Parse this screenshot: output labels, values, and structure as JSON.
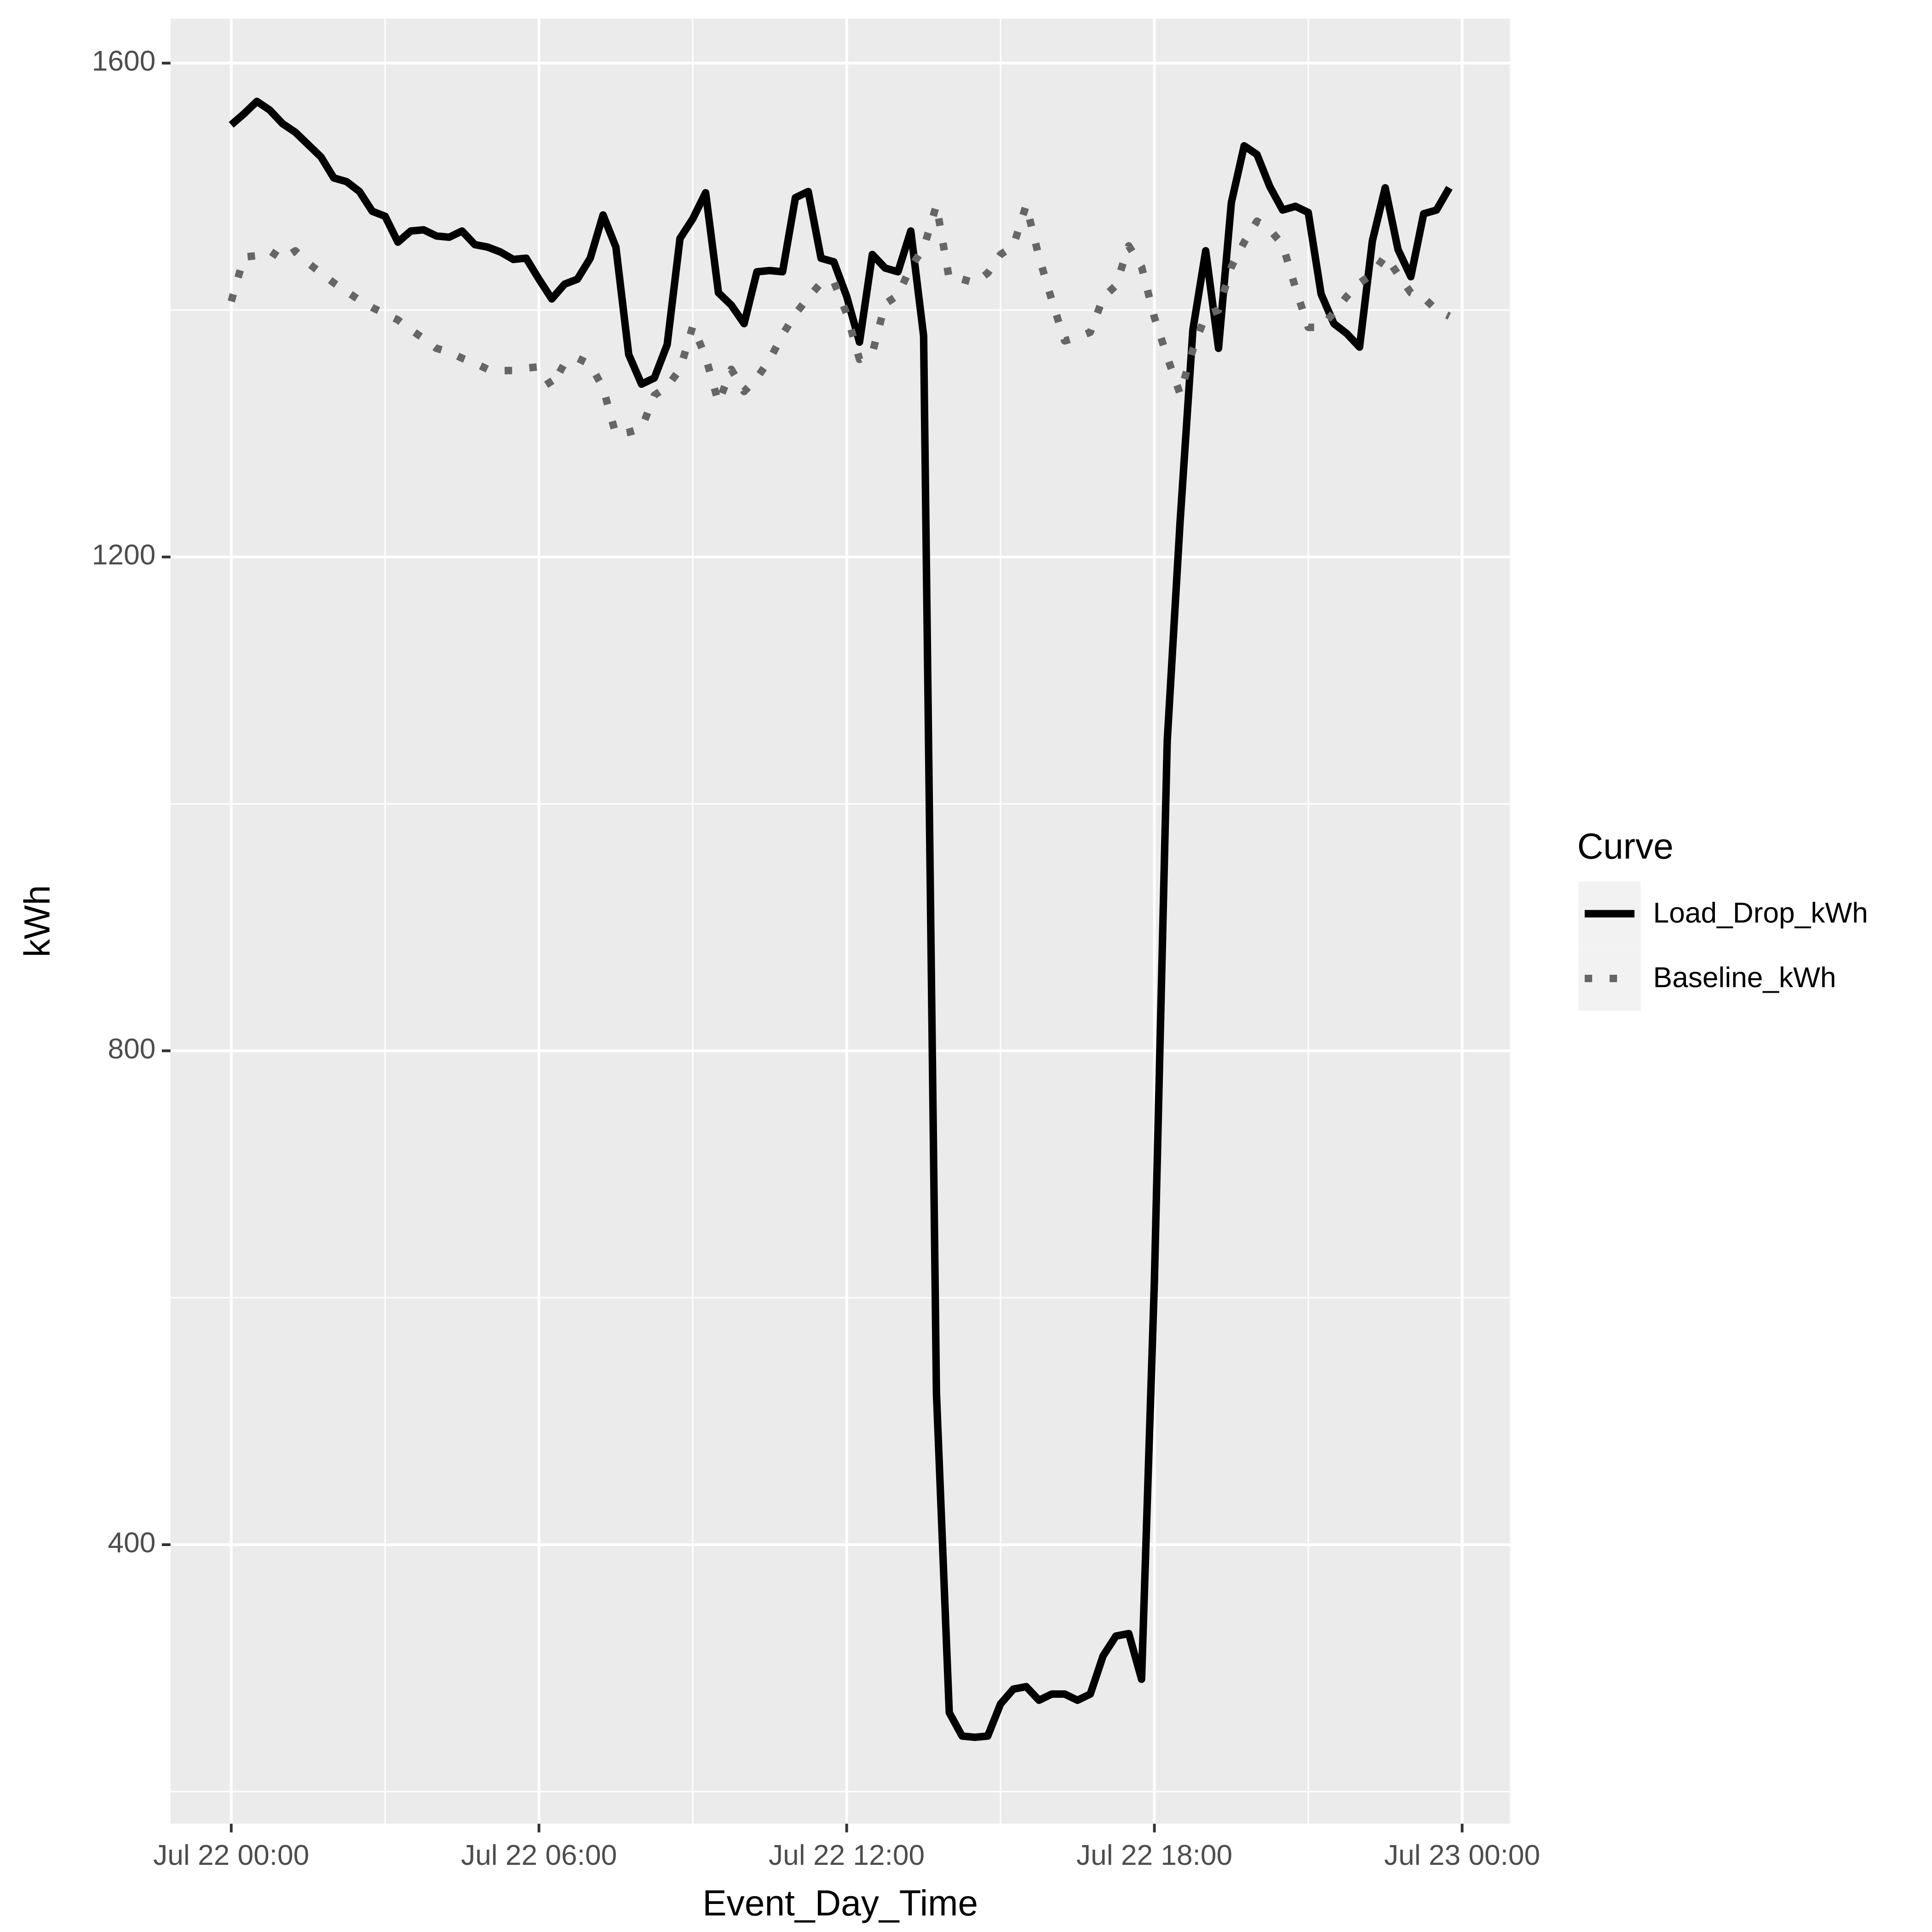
{
  "chart_data": {
    "type": "line",
    "x_label": "Event_Day_Time",
    "y_label": "kWh",
    "legend_title": "Curve",
    "legend_position": "right",
    "grid": true,
    "x": [
      "Jul 22 00:00",
      "Jul 22 00:15",
      "Jul 22 00:30",
      "Jul 22 00:45",
      "Jul 22 01:00",
      "Jul 22 01:15",
      "Jul 22 01:30",
      "Jul 22 01:45",
      "Jul 22 02:00",
      "Jul 22 02:15",
      "Jul 22 02:30",
      "Jul 22 02:45",
      "Jul 22 03:00",
      "Jul 22 03:15",
      "Jul 22 03:30",
      "Jul 22 03:45",
      "Jul 22 04:00",
      "Jul 22 04:15",
      "Jul 22 04:30",
      "Jul 22 04:45",
      "Jul 22 05:00",
      "Jul 22 05:15",
      "Jul 22 05:30",
      "Jul 22 05:45",
      "Jul 22 06:00",
      "Jul 22 06:15",
      "Jul 22 06:30",
      "Jul 22 06:45",
      "Jul 22 07:00",
      "Jul 22 07:15",
      "Jul 22 07:30",
      "Jul 22 07:45",
      "Jul 22 08:00",
      "Jul 22 08:15",
      "Jul 22 08:30",
      "Jul 22 08:45",
      "Jul 22 09:00",
      "Jul 22 09:15",
      "Jul 22 09:30",
      "Jul 22 09:45",
      "Jul 22 10:00",
      "Jul 22 10:15",
      "Jul 22 10:30",
      "Jul 22 10:45",
      "Jul 22 11:00",
      "Jul 22 11:15",
      "Jul 22 11:30",
      "Jul 22 11:45",
      "Jul 22 12:00",
      "Jul 22 12:15",
      "Jul 22 12:30",
      "Jul 22 12:45",
      "Jul 22 13:00",
      "Jul 22 13:15",
      "Jul 22 13:30",
      "Jul 22 13:45",
      "Jul 22 14:00",
      "Jul 22 14:15",
      "Jul 22 14:30",
      "Jul 22 14:45",
      "Jul 22 15:00",
      "Jul 22 15:15",
      "Jul 22 15:30",
      "Jul 22 15:45",
      "Jul 22 16:00",
      "Jul 22 16:15",
      "Jul 22 16:30",
      "Jul 22 16:45",
      "Jul 22 17:00",
      "Jul 22 17:15",
      "Jul 22 17:30",
      "Jul 22 17:45",
      "Jul 22 18:00",
      "Jul 22 18:15",
      "Jul 22 18:30",
      "Jul 22 18:45",
      "Jul 22 19:00",
      "Jul 22 19:15",
      "Jul 22 19:30",
      "Jul 22 19:45",
      "Jul 22 20:00",
      "Jul 22 20:15",
      "Jul 22 20:30",
      "Jul 22 20:45",
      "Jul 22 21:00",
      "Jul 22 21:15",
      "Jul 22 21:30",
      "Jul 22 21:45",
      "Jul 22 22:00",
      "Jul 22 22:15",
      "Jul 22 22:30",
      "Jul 22 22:45",
      "Jul 22 23:00",
      "Jul 22 23:15",
      "Jul 22 23:30",
      "Jul 22 23:45"
    ],
    "series": [
      {
        "name": "Load_Drop_kWh",
        "color": "#000000",
        "linestyle": "solid",
        "values": [
          1550,
          1559,
          1569,
          1562,
          1551,
          1544,
          1534,
          1524,
          1507,
          1504,
          1496,
          1480,
          1476,
          1455,
          1464,
          1465,
          1460,
          1459,
          1464,
          1453,
          1451,
          1447,
          1441,
          1442,
          1425,
          1409,
          1421,
          1425,
          1442,
          1477,
          1451,
          1364,
          1340,
          1345,
          1372,
          1458,
          1474,
          1495,
          1414,
          1404,
          1389,
          1431,
          1432,
          1431,
          1491,
          1496,
          1442,
          1439,
          1411,
          1374,
          1445,
          1434,
          1431,
          1464,
          1379,
          523,
          264,
          245,
          244,
          245,
          271,
          283,
          285,
          274,
          279,
          279,
          274,
          279,
          310,
          326,
          328,
          291,
          614,
          1051,
          1228,
          1384,
          1448,
          1369,
          1487,
          1533,
          1526,
          1500,
          1481,
          1484,
          1479,
          1413,
          1389,
          1381,
          1370,
          1456,
          1499,
          1449,
          1427,
          1478,
          1481,
          1499
        ]
      },
      {
        "name": "Baseline_kWh",
        "color": "#666666",
        "linestyle": "dotted",
        "values": [
          1407,
          1443,
          1444,
          1448,
          1441,
          1448,
          1438,
          1430,
          1422,
          1415,
          1408,
          1402,
          1397,
          1392,
          1384,
          1377,
          1369,
          1366,
          1361,
          1357,
          1352,
          1351,
          1351,
          1353,
          1354,
          1338,
          1357,
          1361,
          1356,
          1337,
          1299,
          1301,
          1304,
          1331,
          1338,
          1352,
          1387,
          1362,
          1325,
          1352,
          1334,
          1345,
          1360,
          1380,
          1397,
          1410,
          1422,
          1423,
          1397,
          1360,
          1365,
          1405,
          1412,
          1435,
          1450,
          1485,
          1425,
          1425,
          1422,
          1430,
          1445,
          1452,
          1485,
          1443,
          1408,
          1375,
          1378,
          1382,
          1410,
          1420,
          1452,
          1435,
          1394,
          1362,
          1332,
          1368,
          1396,
          1400,
          1435,
          1455,
          1472,
          1465,
          1453,
          1418,
          1386,
          1386,
          1398,
          1411,
          1422,
          1429,
          1444,
          1429,
          1414,
          1410,
          1400,
          1395
        ]
      }
    ],
    "xlim": [
      "Jul 21 22:49",
      "Jul 23 00:56"
    ],
    "xticks": [
      "Jul 22 00:00",
      "Jul 22 06:00",
      "Jul 22 12:00",
      "Jul 22 18:00",
      "Jul 23 00:00"
    ],
    "ylim": [
      174,
      1636
    ],
    "yticks": [
      400,
      800,
      1200,
      1600
    ]
  }
}
